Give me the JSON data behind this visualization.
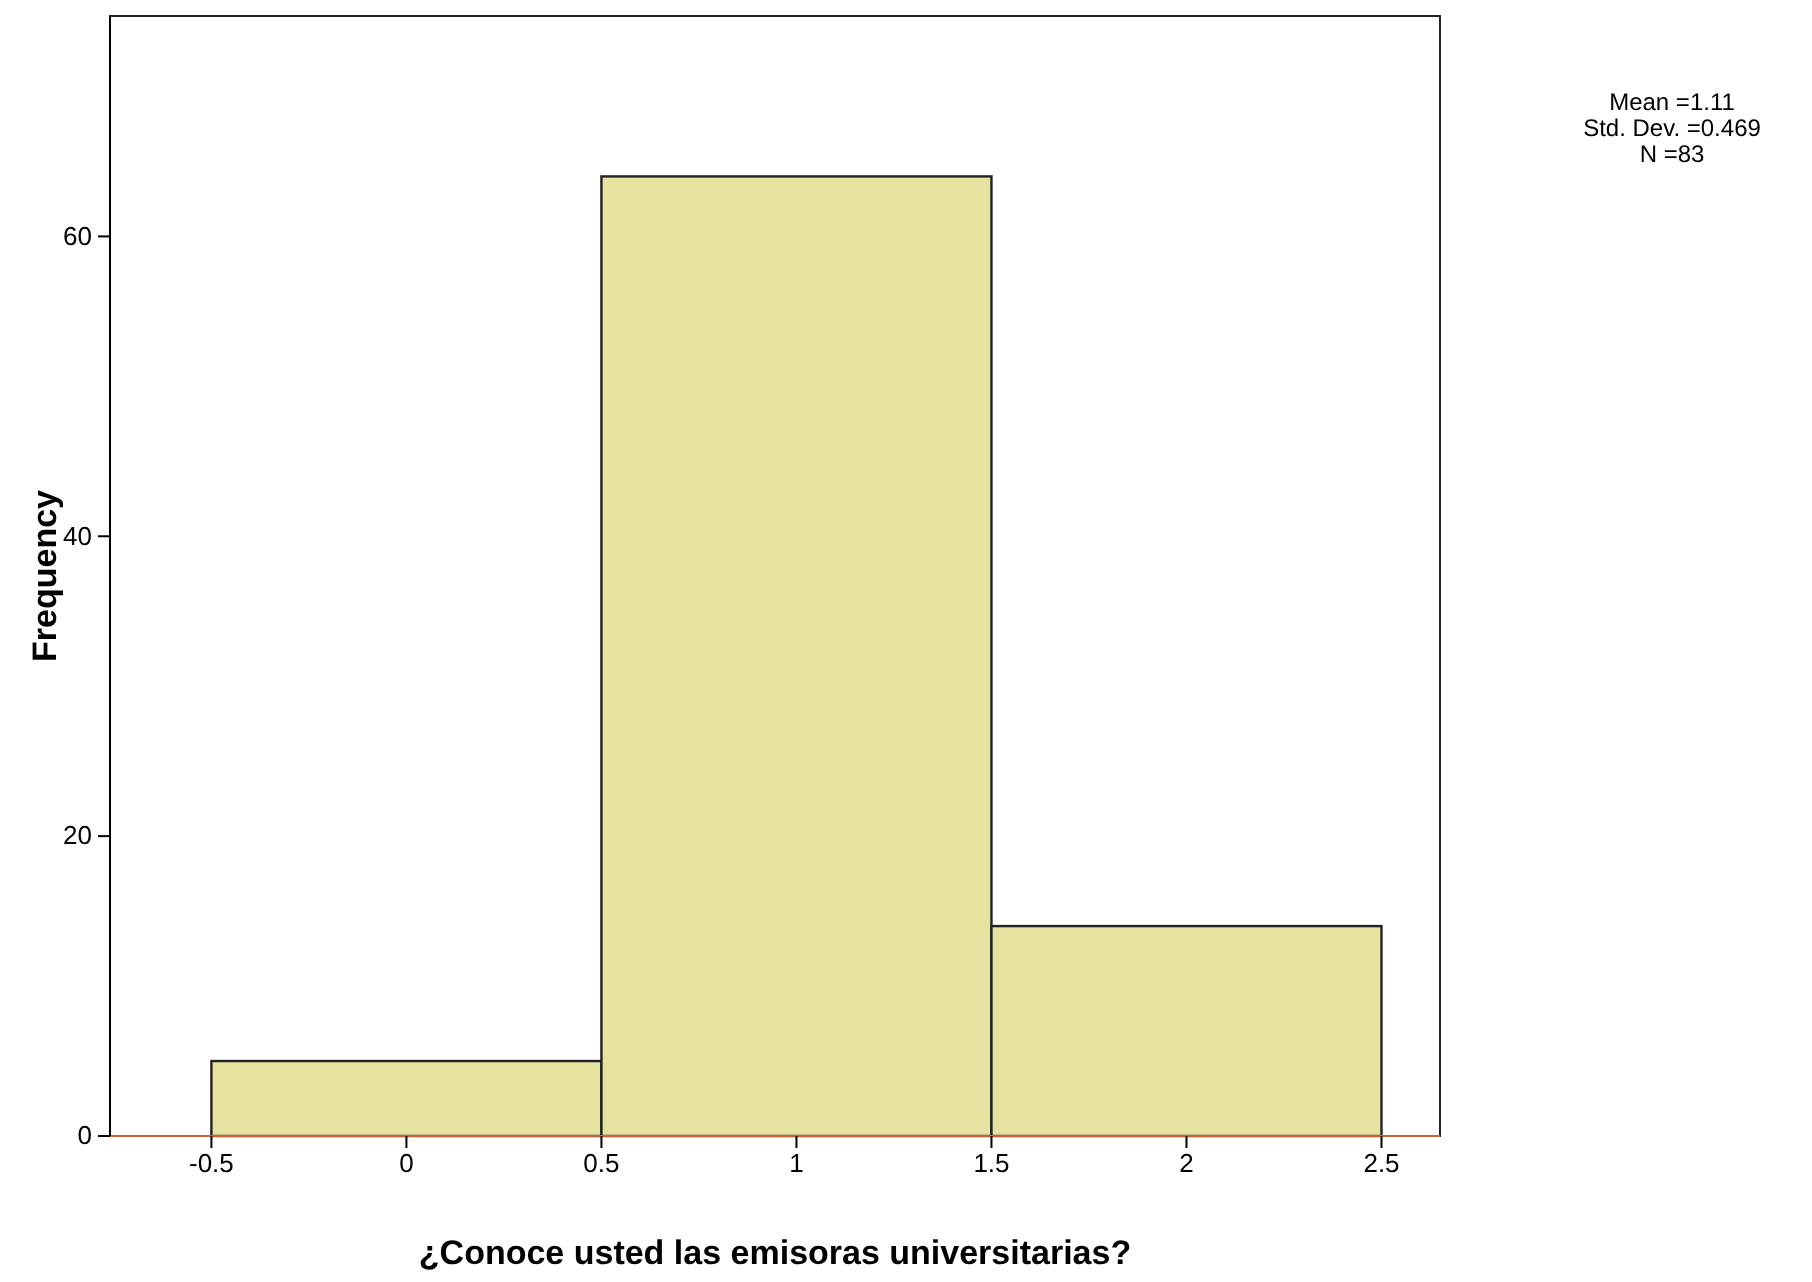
{
  "chart_data": {
    "type": "histogram",
    "xlabel": "¿Conoce usted las emisoras universitarias?",
    "ylabel": "Frequency",
    "bins": [
      -0.5,
      0.5,
      1.5,
      2.5
    ],
    "values": [
      5,
      64,
      14
    ],
    "color": "#e6e3a1",
    "xlim": [
      -0.76,
      2.65
    ],
    "xticks": [
      -0.5,
      0,
      0.5,
      1,
      1.5,
      2,
      2.5
    ],
    "ylim": [
      0,
      74.7
    ],
    "yticks": [
      0,
      20,
      40,
      60
    ],
    "annotations": [
      "Mean =1.11",
      "Std. Dev. =0.469",
      "N =83"
    ]
  }
}
